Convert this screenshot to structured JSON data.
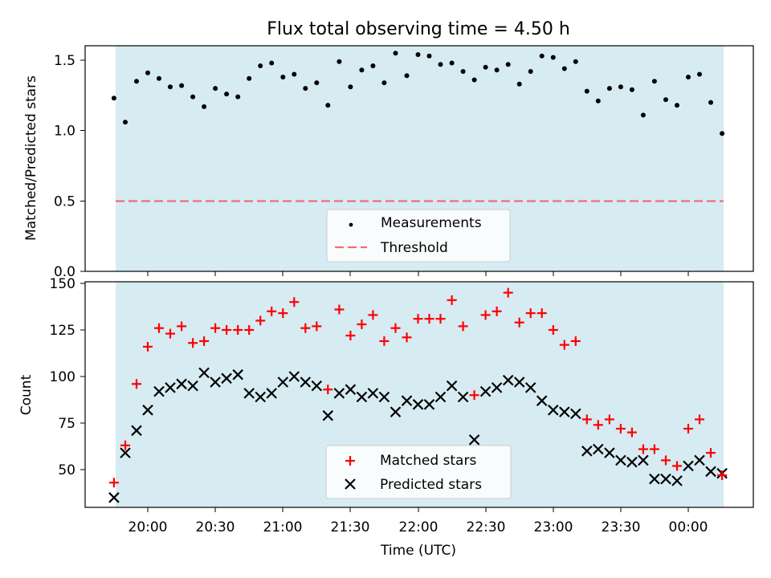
{
  "chart_data": [
    {
      "type": "scatter",
      "title": "Flux total observing time = 4.50 h",
      "xlabel": "",
      "ylabel": "Matched/Predicted stars",
      "ylim": [
        0,
        1.6
      ],
      "yticks": [
        0.0,
        0.5,
        1.0,
        1.5
      ],
      "ytick_labels": [
        "0.0",
        "0.5",
        "1.0",
        "1.5"
      ],
      "threshold": 0.5,
      "shaded_interval": [
        "19:45",
        "00:15"
      ],
      "legend": [
        "Measurements",
        "Threshold"
      ],
      "legend_position": "lower center",
      "x": [
        "19:45",
        "19:50",
        "19:55",
        "20:00",
        "20:05",
        "20:10",
        "20:15",
        "20:20",
        "20:25",
        "20:30",
        "20:35",
        "20:40",
        "20:45",
        "20:50",
        "20:55",
        "21:00",
        "21:05",
        "21:10",
        "21:15",
        "21:20",
        "21:25",
        "21:30",
        "21:35",
        "21:40",
        "21:45",
        "21:50",
        "21:55",
        "22:00",
        "22:05",
        "22:10",
        "22:15",
        "22:20",
        "22:25",
        "22:30",
        "22:35",
        "22:40",
        "22:45",
        "22:50",
        "22:55",
        "23:00",
        "23:05",
        "23:10",
        "23:15",
        "23:20",
        "23:25",
        "23:30",
        "23:35",
        "23:40",
        "23:45",
        "23:50",
        "23:55",
        "00:00",
        "00:05",
        "00:10",
        "00:15"
      ],
      "series": [
        {
          "name": "Measurements",
          "values": [
            1.23,
            1.06,
            1.35,
            1.41,
            1.37,
            1.31,
            1.32,
            1.24,
            1.17,
            1.3,
            1.26,
            1.24,
            1.37,
            1.46,
            1.48,
            1.38,
            1.4,
            1.3,
            1.34,
            1.18,
            1.49,
            1.31,
            1.43,
            1.46,
            1.34,
            1.55,
            1.39,
            1.54,
            1.53,
            1.47,
            1.48,
            1.42,
            1.36,
            1.45,
            1.43,
            1.47,
            1.33,
            1.42,
            1.53,
            1.52,
            1.44,
            1.49,
            1.28,
            1.21,
            1.3,
            1.31,
            1.29,
            1.11,
            1.35,
            1.22,
            1.18,
            1.38,
            1.4,
            1.2,
            0.98
          ]
        }
      ]
    },
    {
      "type": "scatter",
      "title": "",
      "xlabel": "Time (UTC)",
      "ylabel": "Count",
      "ylim": [
        30,
        152
      ],
      "yticks": [
        50,
        75,
        100,
        125,
        150
      ],
      "ytick_labels": [
        "50",
        "75",
        "100",
        "125",
        "150"
      ],
      "xticks": [
        "20:00",
        "20:30",
        "21:00",
        "21:30",
        "22:00",
        "22:30",
        "23:00",
        "23:30",
        "00:00"
      ],
      "shaded_interval": [
        "19:45",
        "00:15"
      ],
      "legend": [
        "Matched stars",
        "Predicted stars"
      ],
      "legend_position": "lower center",
      "x": [
        "19:45",
        "19:50",
        "19:55",
        "20:00",
        "20:05",
        "20:10",
        "20:15",
        "20:20",
        "20:25",
        "20:30",
        "20:35",
        "20:40",
        "20:45",
        "20:50",
        "20:55",
        "21:00",
        "21:05",
        "21:10",
        "21:15",
        "21:20",
        "21:25",
        "21:30",
        "21:35",
        "21:40",
        "21:45",
        "21:50",
        "21:55",
        "22:00",
        "22:05",
        "22:10",
        "22:15",
        "22:20",
        "22:25",
        "22:30",
        "22:35",
        "22:40",
        "22:45",
        "22:50",
        "22:55",
        "23:00",
        "23:05",
        "23:10",
        "23:15",
        "23:20",
        "23:25",
        "23:30",
        "23:35",
        "23:40",
        "23:45",
        "23:50",
        "23:55",
        "00:00",
        "00:05",
        "00:10",
        "00:15"
      ],
      "series": [
        {
          "name": "Matched stars",
          "values": [
            43,
            63,
            96,
            116,
            126,
            123,
            127,
            118,
            119,
            126,
            125,
            125,
            125,
            130,
            135,
            134,
            140,
            126,
            127,
            93,
            136,
            122,
            128,
            133,
            119,
            126,
            121,
            131,
            131,
            131,
            141,
            127,
            90,
            133,
            135,
            145,
            129,
            134,
            134,
            125,
            117,
            119,
            77,
            74,
            77,
            72,
            70,
            61,
            61,
            55,
            52,
            72,
            77,
            59,
            47
          ]
        },
        {
          "name": "Predicted stars",
          "values": [
            35,
            59,
            71,
            82,
            92,
            94,
            96,
            95,
            102,
            97,
            99,
            101,
            91,
            89,
            91,
            97,
            100,
            97,
            95,
            79,
            91,
            93,
            89,
            91,
            89,
            81,
            87,
            85,
            85,
            89,
            95,
            89,
            66,
            92,
            94,
            98,
            97,
            94,
            87,
            82,
            81,
            80,
            60,
            61,
            59,
            55,
            54,
            55,
            45,
            45,
            44,
            52,
            55,
            49,
            48
          ]
        }
      ]
    }
  ]
}
